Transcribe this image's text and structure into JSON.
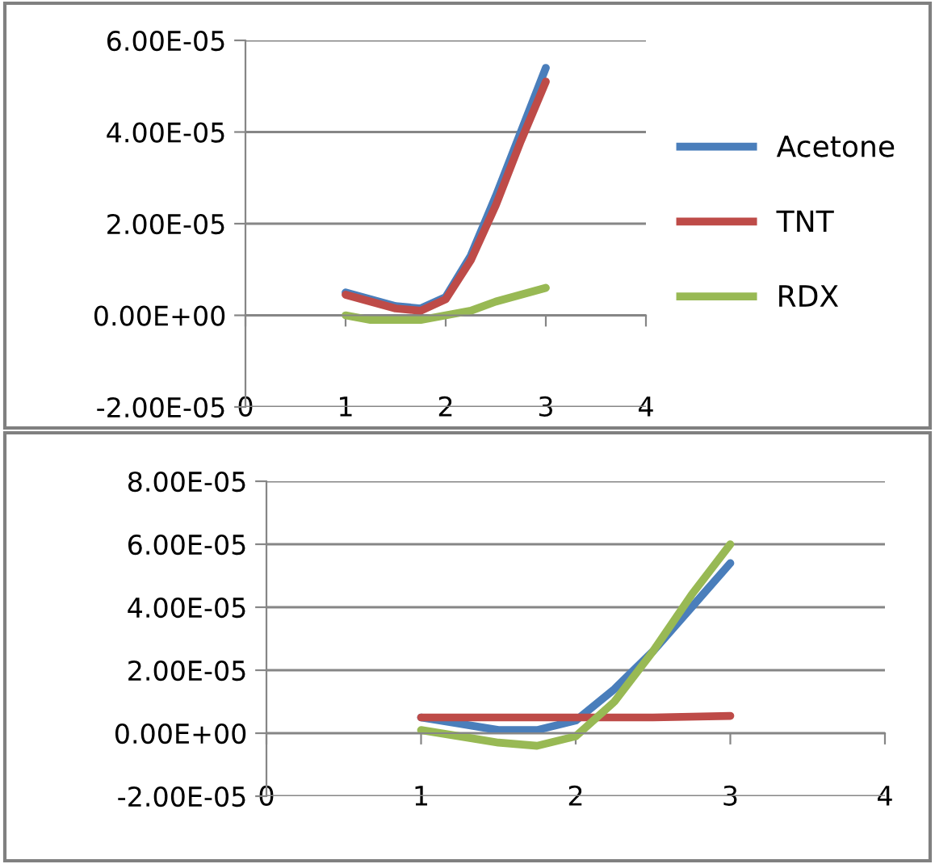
{
  "chart_data": [
    {
      "type": "line",
      "legend": "right",
      "grid": "y",
      "line_style": "solid",
      "marker": "none",
      "xlim": [
        0,
        4
      ],
      "xticks": [
        0,
        1,
        2,
        3,
        4
      ],
      "ylim": [
        -2e-05,
        6e-05
      ],
      "yticks": [
        {
          "value": -2e-05,
          "label": "-2.00E-05"
        },
        {
          "value": 0,
          "label": "0.00E+00"
        },
        {
          "value": 2e-05,
          "label": "2.00E-05"
        },
        {
          "value": 4e-05,
          "label": "4.00E-05"
        },
        {
          "value": 6e-05,
          "label": "6.00E-05"
        }
      ],
      "series": [
        {
          "name": "Acetone",
          "color": "#4a7ebb",
          "x": [
            1,
            1.25,
            1.5,
            1.75,
            2,
            2.25,
            2.5,
            2.75,
            3
          ],
          "values": [
            5e-06,
            3.5e-06,
            2e-06,
            1.5e-06,
            4e-06,
            1.3e-05,
            2.6e-05,
            4e-05,
            5.4e-05
          ]
        },
        {
          "name": "TNT",
          "color": "#be4b48",
          "x": [
            1,
            1.25,
            1.5,
            1.75,
            2,
            2.25,
            2.5,
            2.75,
            3
          ],
          "values": [
            4.5e-06,
            3e-06,
            1.5e-06,
            1e-06,
            3.5e-06,
            1.2e-05,
            2.4e-05,
            3.8e-05,
            5.1e-05
          ]
        },
        {
          "name": "RDX",
          "color": "#98b954",
          "x": [
            1,
            1.25,
            1.5,
            1.75,
            2,
            2.25,
            2.5,
            2.75,
            3
          ],
          "values": [
            0,
            -1e-06,
            -1e-06,
            -1e-06,
            0,
            1e-06,
            3e-06,
            4.5e-06,
            6e-06
          ]
        }
      ]
    },
    {
      "type": "line",
      "grid": "y",
      "line_style": "solid",
      "marker": "none",
      "xlim": [
        0,
        4
      ],
      "xticks": [
        0,
        1,
        2,
        3,
        4
      ],
      "ylim": [
        -2e-05,
        8e-05
      ],
      "yticks": [
        {
          "value": -2e-05,
          "label": "-2.00E-05"
        },
        {
          "value": 0,
          "label": "0.00E+00"
        },
        {
          "value": 2e-05,
          "label": "2.00E-05"
        },
        {
          "value": 4e-05,
          "label": "4.00E-05"
        },
        {
          "value": 6e-05,
          "label": "6.00E-05"
        },
        {
          "value": 8e-05,
          "label": "8.00E-05"
        }
      ],
      "series": [
        {
          "color": "#4a7ebb",
          "x": [
            1,
            1.25,
            1.5,
            1.75,
            2,
            2.25,
            2.5,
            2.75,
            3
          ],
          "values": [
            5e-06,
            3e-06,
            1e-06,
            1e-06,
            4e-06,
            1.4e-05,
            2.6e-05,
            4e-05,
            5.4e-05
          ]
        },
        {
          "color": "#be4b48",
          "x": [
            1,
            2,
            2.5,
            3
          ],
          "values": [
            5e-06,
            5e-06,
            5e-06,
            5.5e-06
          ]
        },
        {
          "color": "#98b954",
          "x": [
            1,
            1.25,
            1.5,
            1.75,
            2,
            2.25,
            2.5,
            2.75,
            3
          ],
          "values": [
            1e-06,
            -1e-06,
            -3e-06,
            -4e-06,
            -1e-06,
            1e-05,
            2.6e-05,
            4.4e-05,
            6e-05
          ]
        }
      ]
    }
  ]
}
